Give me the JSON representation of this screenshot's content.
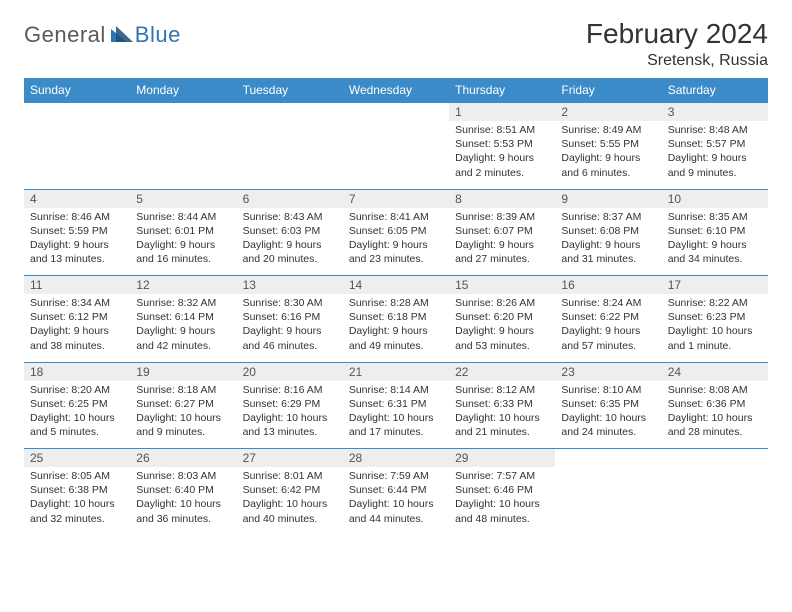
{
  "logo": {
    "general": "General",
    "blue": "Blue"
  },
  "title": "February 2024",
  "location": "Sretensk, Russia",
  "headers": [
    "Sunday",
    "Monday",
    "Tuesday",
    "Wednesday",
    "Thursday",
    "Friday",
    "Saturday"
  ],
  "colors": {
    "header_bg": "#3b8bc9",
    "header_text": "#ffffff",
    "daynum_bg": "#eeeeee",
    "border": "#3b8bc9",
    "logo_gray": "#5a5a5a",
    "logo_blue": "#2e75b6"
  },
  "weeks": [
    [
      null,
      null,
      null,
      null,
      {
        "n": "1",
        "sr": "8:51 AM",
        "ss": "5:53 PM",
        "dl": "9 hours and 2 minutes."
      },
      {
        "n": "2",
        "sr": "8:49 AM",
        "ss": "5:55 PM",
        "dl": "9 hours and 6 minutes."
      },
      {
        "n": "3",
        "sr": "8:48 AM",
        "ss": "5:57 PM",
        "dl": "9 hours and 9 minutes."
      }
    ],
    [
      {
        "n": "4",
        "sr": "8:46 AM",
        "ss": "5:59 PM",
        "dl": "9 hours and 13 minutes."
      },
      {
        "n": "5",
        "sr": "8:44 AM",
        "ss": "6:01 PM",
        "dl": "9 hours and 16 minutes."
      },
      {
        "n": "6",
        "sr": "8:43 AM",
        "ss": "6:03 PM",
        "dl": "9 hours and 20 minutes."
      },
      {
        "n": "7",
        "sr": "8:41 AM",
        "ss": "6:05 PM",
        "dl": "9 hours and 23 minutes."
      },
      {
        "n": "8",
        "sr": "8:39 AM",
        "ss": "6:07 PM",
        "dl": "9 hours and 27 minutes."
      },
      {
        "n": "9",
        "sr": "8:37 AM",
        "ss": "6:08 PM",
        "dl": "9 hours and 31 minutes."
      },
      {
        "n": "10",
        "sr": "8:35 AM",
        "ss": "6:10 PM",
        "dl": "9 hours and 34 minutes."
      }
    ],
    [
      {
        "n": "11",
        "sr": "8:34 AM",
        "ss": "6:12 PM",
        "dl": "9 hours and 38 minutes."
      },
      {
        "n": "12",
        "sr": "8:32 AM",
        "ss": "6:14 PM",
        "dl": "9 hours and 42 minutes."
      },
      {
        "n": "13",
        "sr": "8:30 AM",
        "ss": "6:16 PM",
        "dl": "9 hours and 46 minutes."
      },
      {
        "n": "14",
        "sr": "8:28 AM",
        "ss": "6:18 PM",
        "dl": "9 hours and 49 minutes."
      },
      {
        "n": "15",
        "sr": "8:26 AM",
        "ss": "6:20 PM",
        "dl": "9 hours and 53 minutes."
      },
      {
        "n": "16",
        "sr": "8:24 AM",
        "ss": "6:22 PM",
        "dl": "9 hours and 57 minutes."
      },
      {
        "n": "17",
        "sr": "8:22 AM",
        "ss": "6:23 PM",
        "dl": "10 hours and 1 minute."
      }
    ],
    [
      {
        "n": "18",
        "sr": "8:20 AM",
        "ss": "6:25 PM",
        "dl": "10 hours and 5 minutes."
      },
      {
        "n": "19",
        "sr": "8:18 AM",
        "ss": "6:27 PM",
        "dl": "10 hours and 9 minutes."
      },
      {
        "n": "20",
        "sr": "8:16 AM",
        "ss": "6:29 PM",
        "dl": "10 hours and 13 minutes."
      },
      {
        "n": "21",
        "sr": "8:14 AM",
        "ss": "6:31 PM",
        "dl": "10 hours and 17 minutes."
      },
      {
        "n": "22",
        "sr": "8:12 AM",
        "ss": "6:33 PM",
        "dl": "10 hours and 21 minutes."
      },
      {
        "n": "23",
        "sr": "8:10 AM",
        "ss": "6:35 PM",
        "dl": "10 hours and 24 minutes."
      },
      {
        "n": "24",
        "sr": "8:08 AM",
        "ss": "6:36 PM",
        "dl": "10 hours and 28 minutes."
      }
    ],
    [
      {
        "n": "25",
        "sr": "8:05 AM",
        "ss": "6:38 PM",
        "dl": "10 hours and 32 minutes."
      },
      {
        "n": "26",
        "sr": "8:03 AM",
        "ss": "6:40 PM",
        "dl": "10 hours and 36 minutes."
      },
      {
        "n": "27",
        "sr": "8:01 AM",
        "ss": "6:42 PM",
        "dl": "10 hours and 40 minutes."
      },
      {
        "n": "28",
        "sr": "7:59 AM",
        "ss": "6:44 PM",
        "dl": "10 hours and 44 minutes."
      },
      {
        "n": "29",
        "sr": "7:57 AM",
        "ss": "6:46 PM",
        "dl": "10 hours and 48 minutes."
      },
      null,
      null
    ]
  ],
  "labels": {
    "sunrise": "Sunrise: ",
    "sunset": "Sunset: ",
    "daylight": "Daylight: "
  }
}
